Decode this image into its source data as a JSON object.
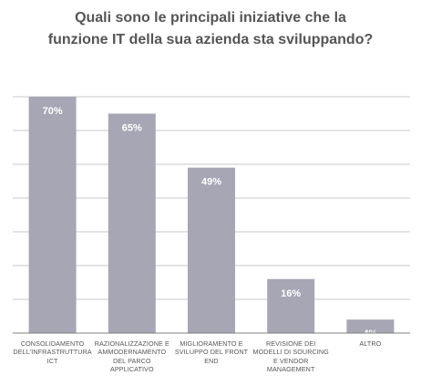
{
  "chart_data": {
    "type": "bar",
    "title_lines": [
      "Quali sono le principali iniziative che la",
      "funzione IT della sua azienda sta sviluppando?"
    ],
    "categories": [
      [
        "CONSOLIDAMENTO",
        "DELL'INFRASTRUTTURA",
        "ICT"
      ],
      [
        "RAZIONALIZZAZIONE E",
        "AMMODERNAMENTO",
        "DEL PARCO",
        "APPLICATIVO"
      ],
      [
        "MIGLIORAMENTO E",
        "SVILUPPO DEL FRONT",
        "END"
      ],
      [
        "REVISIONE DEI",
        "MODELLI DI SOURCING",
        "E VENDOR",
        "MANAGEMENT"
      ],
      [
        "ALTRO"
      ]
    ],
    "values": [
      70,
      65,
      49,
      16,
      4
    ],
    "value_labels": [
      "70%",
      "65%",
      "49%",
      "16%",
      "4%"
    ],
    "ylim": [
      0,
      70
    ],
    "grid": true,
    "xlabel": "",
    "ylabel": "",
    "colors": {
      "bar": "#a6a6b5",
      "bar_label": "#ffffff",
      "grid": "#c9c9c9",
      "axis": "#7f7f7f",
      "title": "#555555",
      "category_text": "#555555"
    }
  }
}
